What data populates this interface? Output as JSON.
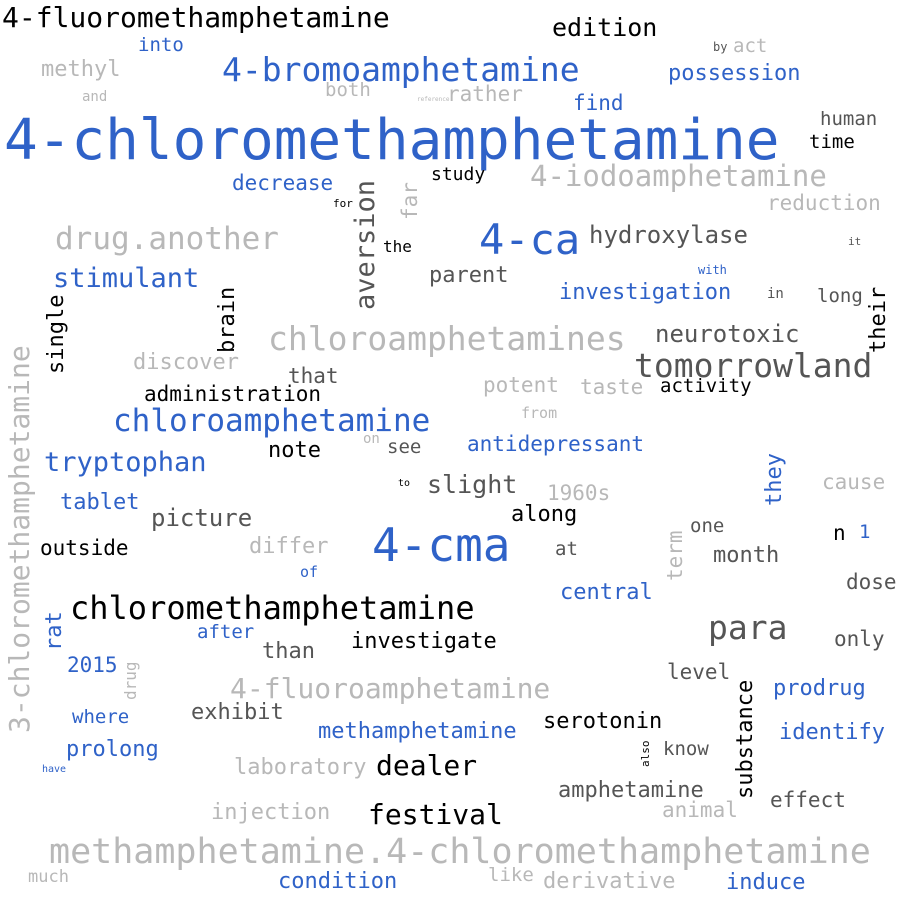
{
  "palette": {
    "black": "#000000",
    "blue": "#2f62c8",
    "dark_gray": "#555555",
    "light_gray": "#b8b8b8"
  },
  "words": [
    {
      "text": "4-fluoromethamphetamine",
      "color": "black"
    },
    {
      "text": "edition",
      "color": "black"
    },
    {
      "text": "into",
      "color": "blue"
    },
    {
      "text": "by",
      "color": "dark_gray"
    },
    {
      "text": "act",
      "color": "light_gray"
    },
    {
      "text": "methyl",
      "color": "light_gray"
    },
    {
      "text": "4-bromoamphetamine",
      "color": "blue"
    },
    {
      "text": "possession",
      "color": "blue"
    },
    {
      "text": "and",
      "color": "light_gray"
    },
    {
      "text": "both",
      "color": "light_gray"
    },
    {
      "text": "reference",
      "color": "light_gray"
    },
    {
      "text": "rather",
      "color": "light_gray"
    },
    {
      "text": "find",
      "color": "blue"
    },
    {
      "text": "4-chloromethamphetamine",
      "color": "blue"
    },
    {
      "text": "human",
      "color": "dark_gray"
    },
    {
      "text": "time",
      "color": "black"
    },
    {
      "text": "study",
      "color": "black"
    },
    {
      "text": "decrease",
      "color": "blue"
    },
    {
      "text": "4-iodoamphetamine",
      "color": "light_gray"
    },
    {
      "text": "reduction",
      "color": "light_gray"
    },
    {
      "text": "aversion",
      "color": "dark_gray"
    },
    {
      "text": "far",
      "color": "light_gray"
    },
    {
      "text": "for",
      "color": "black"
    },
    {
      "text": "drug.another",
      "color": "light_gray"
    },
    {
      "text": "4-ca",
      "color": "blue"
    },
    {
      "text": "hydroxylase",
      "color": "dark_gray"
    },
    {
      "text": "it",
      "color": "dark_gray"
    },
    {
      "text": "the",
      "color": "black"
    },
    {
      "text": "stimulant",
      "color": "blue"
    },
    {
      "text": "parent",
      "color": "dark_gray"
    },
    {
      "text": "with",
      "color": "blue"
    },
    {
      "text": "investigation",
      "color": "blue"
    },
    {
      "text": "in",
      "color": "dark_gray"
    },
    {
      "text": "long",
      "color": "dark_gray"
    },
    {
      "text": "their",
      "color": "black"
    },
    {
      "text": "brain",
      "color": "black"
    },
    {
      "text": "single",
      "color": "black"
    },
    {
      "text": "chloroamphetamines",
      "color": "light_gray"
    },
    {
      "text": "neurotoxic",
      "color": "dark_gray"
    },
    {
      "text": "3-chloromethamphetamine",
      "color": "light_gray"
    },
    {
      "text": "discover",
      "color": "light_gray"
    },
    {
      "text": "tomorrowland",
      "color": "dark_gray"
    },
    {
      "text": "that",
      "color": "dark_gray"
    },
    {
      "text": "administration",
      "color": "black"
    },
    {
      "text": "potent",
      "color": "light_gray"
    },
    {
      "text": "taste",
      "color": "light_gray"
    },
    {
      "text": "activity",
      "color": "black"
    },
    {
      "text": "from",
      "color": "light_gray"
    },
    {
      "text": "chloroamphetamine",
      "color": "blue"
    },
    {
      "text": "on",
      "color": "light_gray"
    },
    {
      "text": "see",
      "color": "dark_gray"
    },
    {
      "text": "antidepressant",
      "color": "blue"
    },
    {
      "text": "note",
      "color": "black"
    },
    {
      "text": "tryptophan",
      "color": "blue"
    },
    {
      "text": "to",
      "color": "black"
    },
    {
      "text": "slight",
      "color": "dark_gray"
    },
    {
      "text": "they",
      "color": "blue"
    },
    {
      "text": "cause",
      "color": "light_gray"
    },
    {
      "text": "1960s",
      "color": "light_gray"
    },
    {
      "text": "tablet",
      "color": "blue"
    },
    {
      "text": "picture",
      "color": "dark_gray"
    },
    {
      "text": "along",
      "color": "black"
    },
    {
      "text": "one",
      "color": "dark_gray"
    },
    {
      "text": "n",
      "color": "black"
    },
    {
      "text": "1",
      "color": "blue"
    },
    {
      "text": "term",
      "color": "light_gray"
    },
    {
      "text": "4-cma",
      "color": "blue"
    },
    {
      "text": "outside",
      "color": "black"
    },
    {
      "text": "differ",
      "color": "light_gray"
    },
    {
      "text": "at",
      "color": "dark_gray"
    },
    {
      "text": "month",
      "color": "dark_gray"
    },
    {
      "text": "of",
      "color": "blue"
    },
    {
      "text": "dose",
      "color": "dark_gray"
    },
    {
      "text": "central",
      "color": "blue"
    },
    {
      "text": "chloromethamphetamine",
      "color": "black"
    },
    {
      "text": "rat",
      "color": "blue"
    },
    {
      "text": "after",
      "color": "blue"
    },
    {
      "text": "para",
      "color": "dark_gray"
    },
    {
      "text": "investigate",
      "color": "black"
    },
    {
      "text": "than",
      "color": "dark_gray"
    },
    {
      "text": "only",
      "color": "dark_gray"
    },
    {
      "text": "2015",
      "color": "blue"
    },
    {
      "text": "drug",
      "color": "light_gray"
    },
    {
      "text": "level",
      "color": "dark_gray"
    },
    {
      "text": "4-fluoroamphetamine",
      "color": "light_gray"
    },
    {
      "text": "prodrug",
      "color": "blue"
    },
    {
      "text": "substance",
      "color": "black"
    },
    {
      "text": "exhibit",
      "color": "dark_gray"
    },
    {
      "text": "where",
      "color": "blue"
    },
    {
      "text": "methamphetamine",
      "color": "blue"
    },
    {
      "text": "serotonin",
      "color": "black"
    },
    {
      "text": "identify",
      "color": "blue"
    },
    {
      "text": "prolong",
      "color": "blue"
    },
    {
      "text": "also",
      "color": "black"
    },
    {
      "text": "know",
      "color": "dark_gray"
    },
    {
      "text": "have",
      "color": "blue"
    },
    {
      "text": "laboratory",
      "color": "light_gray"
    },
    {
      "text": "dealer",
      "color": "black"
    },
    {
      "text": "amphetamine",
      "color": "dark_gray"
    },
    {
      "text": "effect",
      "color": "dark_gray"
    },
    {
      "text": "injection",
      "color": "light_gray"
    },
    {
      "text": "festival",
      "color": "black"
    },
    {
      "text": "animal",
      "color": "light_gray"
    },
    {
      "text": "methamphetamine.4-chloromethamphetamine",
      "color": "light_gray"
    },
    {
      "text": "much",
      "color": "light_gray"
    },
    {
      "text": "condition",
      "color": "blue"
    },
    {
      "text": "like",
      "color": "light_gray"
    },
    {
      "text": "derivative",
      "color": "light_gray"
    },
    {
      "text": "induce",
      "color": "blue"
    }
  ]
}
